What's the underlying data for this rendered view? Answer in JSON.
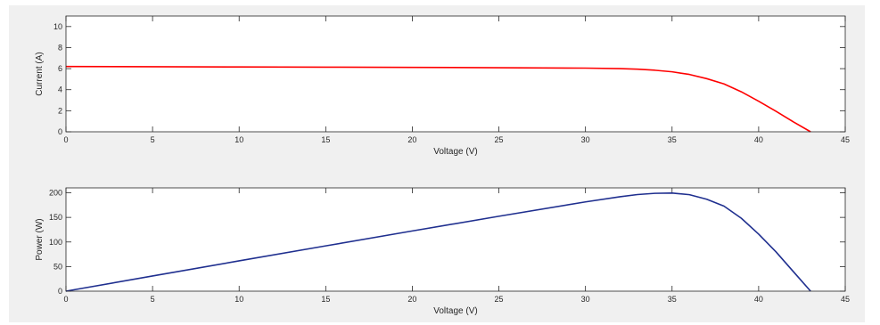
{
  "chart_data": [
    {
      "type": "line",
      "title": "",
      "xlabel": "Voltage (V)",
      "ylabel": "Current (A)",
      "xlim": [
        0,
        45
      ],
      "ylim": [
        0,
        11
      ],
      "x_ticks": [
        0,
        5,
        10,
        15,
        20,
        25,
        30,
        35,
        40,
        45
      ],
      "y_ticks": [
        0,
        2,
        4,
        6,
        8,
        10
      ],
      "grid": false,
      "legend": "none",
      "series": [
        {
          "color": "#ff0000",
          "x": [
            0,
            5,
            10,
            15,
            20,
            25,
            30,
            32,
            33,
            34,
            35,
            36,
            37,
            38,
            39,
            40,
            41,
            42,
            43
          ],
          "values": [
            6.2,
            6.18,
            6.16,
            6.14,
            6.12,
            6.09,
            6.05,
            6.0,
            5.95,
            5.85,
            5.7,
            5.45,
            5.05,
            4.55,
            3.8,
            2.9,
            1.95,
            0.95,
            0.0
          ]
        }
      ]
    },
    {
      "type": "line",
      "title": "",
      "xlabel": "Voltage (V)",
      "ylabel": "Power (W)",
      "xlim": [
        0,
        45
      ],
      "ylim": [
        0,
        210
      ],
      "x_ticks": [
        0,
        5,
        10,
        15,
        20,
        25,
        30,
        35,
        40,
        45
      ],
      "y_ticks": [
        0,
        50,
        100,
        150,
        200
      ],
      "grid": false,
      "legend": "none",
      "series": [
        {
          "color": "#1f2f8f",
          "x": [
            0,
            5,
            10,
            15,
            20,
            25,
            30,
            32,
            33,
            34,
            35,
            36,
            37,
            38,
            39,
            40,
            41,
            42,
            43
          ],
          "values": [
            0,
            30.9,
            61.6,
            92.1,
            122.4,
            152.3,
            181.5,
            192.0,
            196.4,
            198.9,
            199.5,
            196.2,
            186.9,
            172.9,
            148.2,
            116.0,
            80.0,
            39.9,
            0.0
          ]
        }
      ]
    }
  ]
}
